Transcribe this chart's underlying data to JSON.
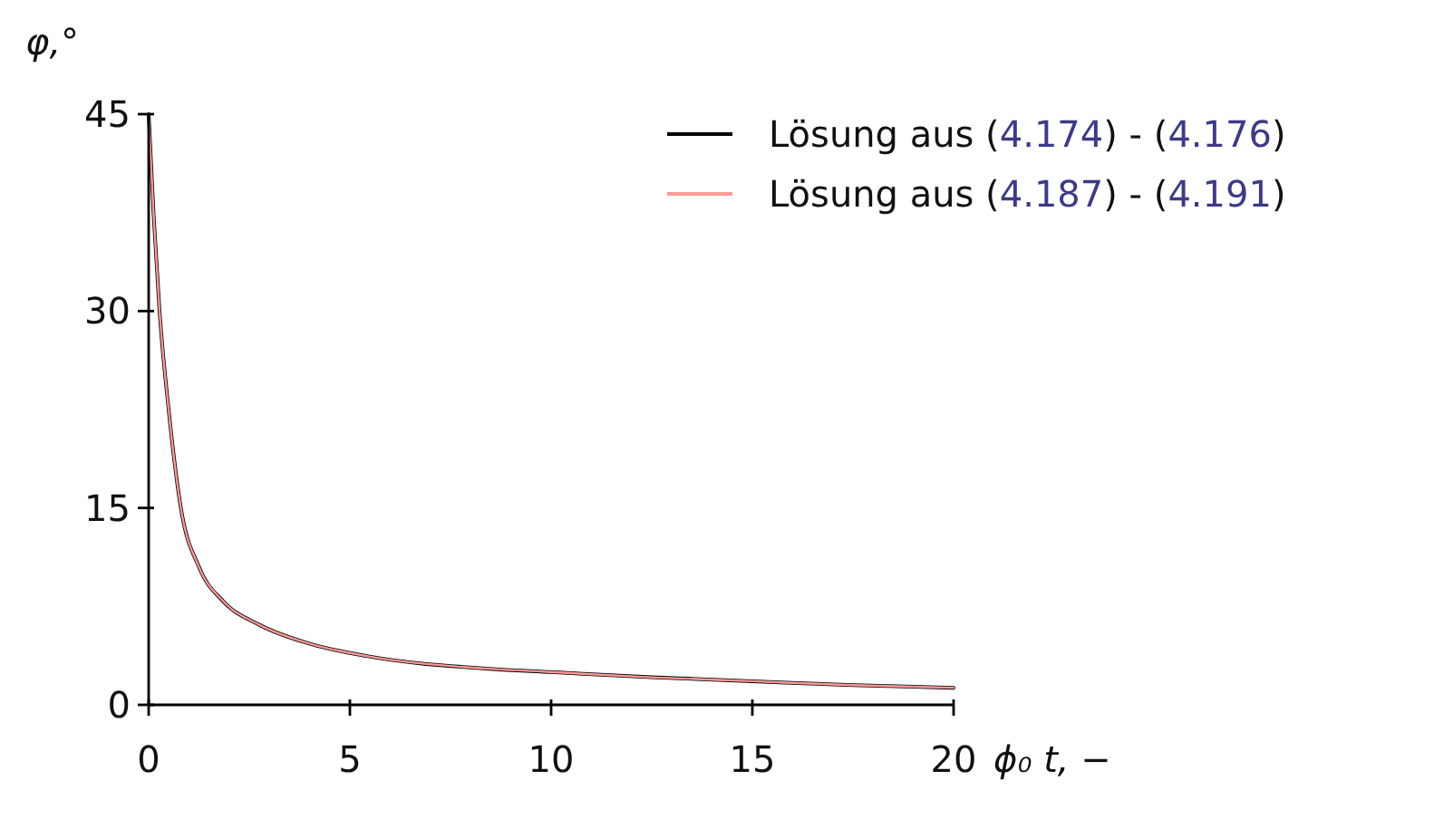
{
  "chart_data": {
    "type": "line",
    "xlabel": "ϕ₀ t, −",
    "ylabel": "φ,°",
    "x": [
      0,
      0.12,
      0.27,
      0.5,
      0.8,
      1.25,
      1.85,
      2.75,
      3.95,
      5.45,
      8.45,
      10,
      12.5,
      15,
      17.5,
      20
    ],
    "series": [
      {
        "name": "Lösung aus (4.174) - (4.176)",
        "color": "#000000",
        "values": [
          45,
          37.5,
          30,
          22.4,
          15,
          10.5,
          7.9,
          6.1,
          4.7,
          3.7,
          2.75,
          2.5,
          2.1,
          1.8,
          1.5,
          1.3
        ]
      },
      {
        "name": "Lösung aus (4.187) - (4.191)",
        "color": "#ff9999",
        "values": [
          45,
          37.5,
          30,
          22.4,
          15,
          10.5,
          7.9,
          6.1,
          4.7,
          3.7,
          2.75,
          2.5,
          2.1,
          1.8,
          1.5,
          1.3
        ]
      }
    ],
    "xlim": [
      0,
      20
    ],
    "ylim": [
      0,
      45
    ],
    "xticks": [
      0,
      5,
      10,
      15,
      20
    ],
    "yticks": [
      0,
      15,
      30,
      45
    ],
    "legend": "top right",
    "grid": false,
    "marker": "none",
    "line_style": "solid"
  }
}
